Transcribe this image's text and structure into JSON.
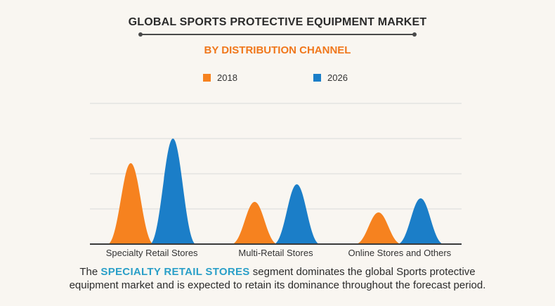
{
  "header": {
    "title": "GLOBAL SPORTS PROTECTIVE EQUIPMENT MARKET",
    "subtitle": "BY DISTRIBUTION CHANNEL"
  },
  "colors": {
    "series_2018": "#f6821f",
    "series_2026": "#1b7ec8",
    "grid": "#d9d9d9",
    "baseline": "#3a3a3a"
  },
  "chart_data": {
    "type": "area",
    "categories": [
      "Specialty Retail Stores",
      "Multi-Retail Stores",
      "Online Stores and Others"
    ],
    "series": [
      {
        "name": "2018",
        "values": [
          2.3,
          1.2,
          0.9
        ]
      },
      {
        "name": "2026",
        "values": [
          3.0,
          1.7,
          1.3
        ]
      }
    ],
    "ylim": [
      0,
      4
    ],
    "grid": true,
    "legend": "top-center"
  },
  "caption": {
    "before": "The ",
    "highlight": "SPECIALTY RETAIL STORES",
    "after_line1": " segment dominates the global Sports protective",
    "line2": "equipment market and is expected to retain its dominance throughout the forecast period."
  }
}
